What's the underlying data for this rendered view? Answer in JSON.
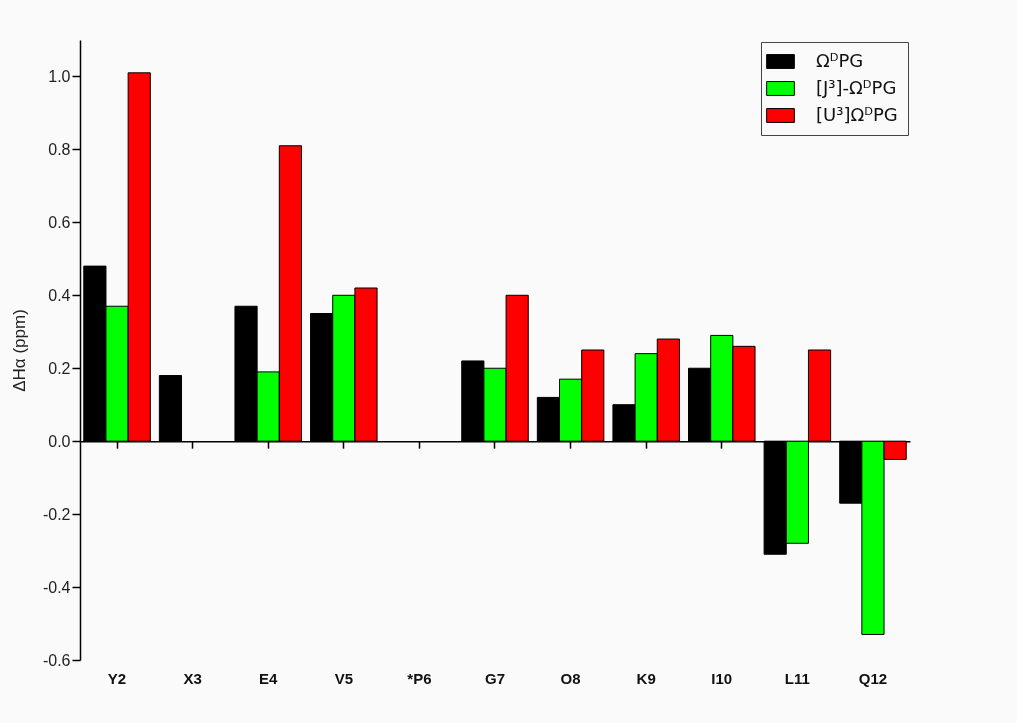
{
  "chart_data": {
    "type": "bar",
    "ylabel": "ΔHα (ppm)",
    "categories": [
      "Y2",
      "X3",
      "E4",
      "V5",
      "*P6",
      "G7",
      "O8",
      "K9",
      "I10",
      "L11",
      "Q12"
    ],
    "series": [
      {
        "name": "ΩᴰPG",
        "color": "#000000",
        "values": [
          0.48,
          0.18,
          0.37,
          0.35,
          null,
          0.22,
          0.12,
          0.1,
          0.2,
          -0.31,
          -0.17
        ]
      },
      {
        "name": "[J³]-ΩᴰPG",
        "color": "#00ff00",
        "values": [
          0.37,
          null,
          0.19,
          0.4,
          null,
          0.2,
          0.17,
          0.24,
          0.29,
          -0.28,
          -0.53
        ]
      },
      {
        "name": "[U³]ΩᴰPG",
        "color": "#ff0000",
        "values": [
          1.01,
          null,
          0.81,
          0.42,
          null,
          0.4,
          0.25,
          0.28,
          0.26,
          0.25,
          -0.05
        ]
      }
    ],
    "ylim": [
      -0.6,
      1.1
    ],
    "yticks": [
      -0.6,
      -0.4,
      -0.2,
      {
        "value": 0,
        "label": "0.0"
      },
      0.2,
      0.4,
      0.6,
      0.8,
      {
        "value": 1,
        "label": "1.0"
      }
    ],
    "legend": "top right"
  }
}
